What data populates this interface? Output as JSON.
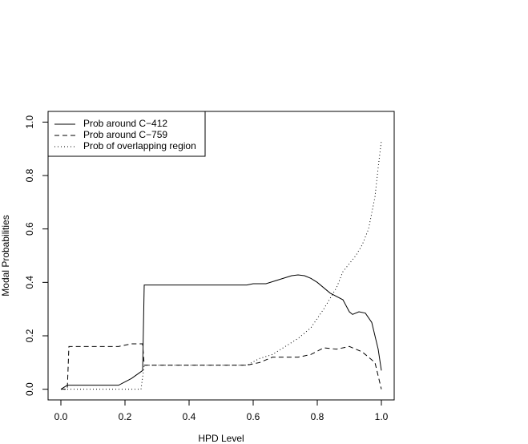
{
  "chart_data": {
    "type": "line",
    "xlabel": "HPD Level",
    "ylabel": "Modal Probabilities",
    "xlim": [
      -0.04,
      1.04
    ],
    "ylim": [
      -0.04,
      1.04
    ],
    "xticks": [
      {
        "value": 0,
        "label": "0.0"
      },
      0.2,
      0.4,
      0.6,
      0.8,
      {
        "value": 1,
        "label": "1.0"
      }
    ],
    "yticks": [
      {
        "value": 0,
        "label": "0.0"
      },
      0.2,
      0.4,
      0.6,
      0.8,
      {
        "value": 1,
        "label": "1.0"
      }
    ],
    "legend": "top-left",
    "series": [
      {
        "name": "Prob around C−412",
        "color": "#000000",
        "linestyle": "solid",
        "x": [
          0,
          0.02,
          0.18,
          0.22,
          0.255,
          0.26,
          0.58,
          0.6,
          0.64,
          0.68,
          0.72,
          0.74,
          0.76,
          0.78,
          0.8,
          0.84,
          0.88,
          0.9,
          0.91,
          0.93,
          0.95,
          0.97,
          0.99,
          1.0
        ],
        "values": [
          0,
          0.015,
          0.015,
          0.04,
          0.07,
          0.39,
          0.39,
          0.395,
          0.395,
          0.41,
          0.425,
          0.428,
          0.425,
          0.415,
          0.4,
          0.36,
          0.335,
          0.29,
          0.28,
          0.29,
          0.285,
          0.25,
          0.15,
          0.07
        ]
      },
      {
        "name": "Prob around C−759",
        "color": "#000000",
        "linestyle": "dashed",
        "x": [
          0,
          0.02,
          0.025,
          0.18,
          0.22,
          0.255,
          0.26,
          0.58,
          0.62,
          0.66,
          0.74,
          0.78,
          0.82,
          0.86,
          0.9,
          0.94,
          0.98,
          1.0
        ],
        "values": [
          0,
          0,
          0.16,
          0.16,
          0.17,
          0.17,
          0.09,
          0.09,
          0.1,
          0.12,
          0.12,
          0.13,
          0.155,
          0.15,
          0.16,
          0.14,
          0.1,
          0
        ]
      },
      {
        "name": "Prob of overlapping region",
        "color": "#000000",
        "linestyle": "dotted",
        "x": [
          0,
          0.25,
          0.26,
          0.58,
          0.62,
          0.66,
          0.7,
          0.74,
          0.78,
          0.82,
          0.86,
          0.88,
          0.9,
          0.92,
          0.94,
          0.96,
          0.98,
          0.99,
          1.0
        ],
        "values": [
          0,
          0,
          0.09,
          0.09,
          0.115,
          0.13,
          0.16,
          0.19,
          0.23,
          0.3,
          0.38,
          0.44,
          0.47,
          0.5,
          0.54,
          0.6,
          0.72,
          0.83,
          0.93
        ]
      }
    ]
  }
}
